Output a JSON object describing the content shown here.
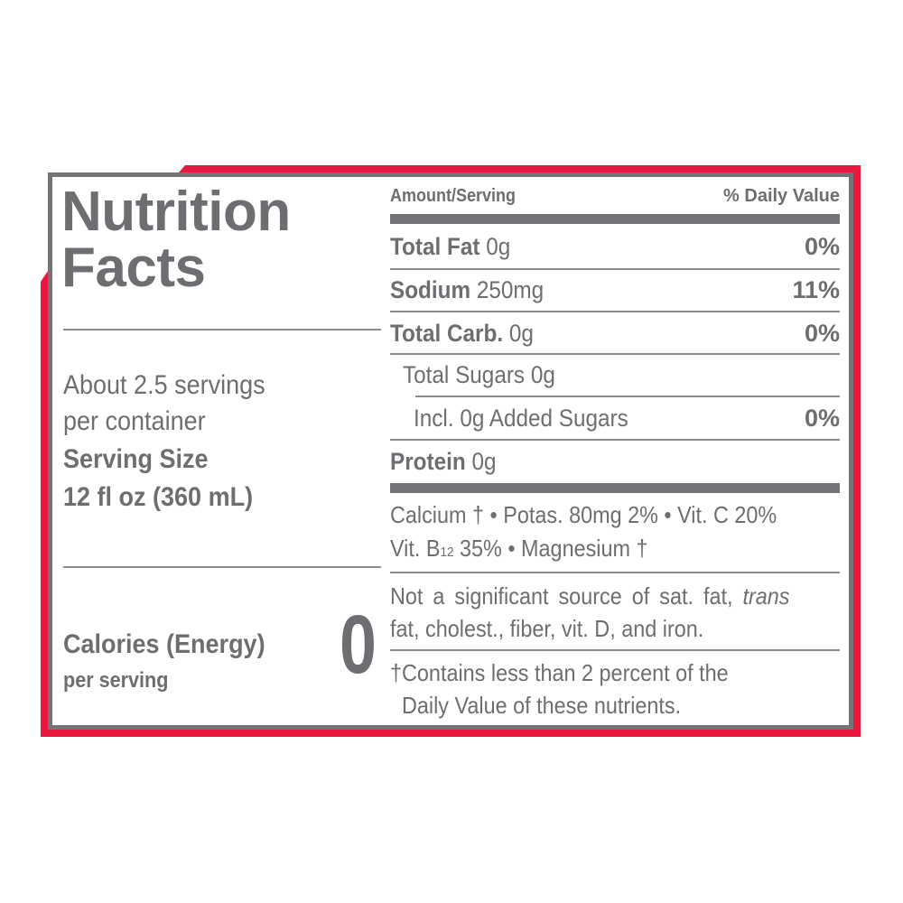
{
  "colors": {
    "frame_red": "#e8183f",
    "text_gray": "#6d6e71",
    "border_gray": "#737477"
  },
  "title": {
    "line1": "Nutrition",
    "line2": "Facts"
  },
  "servings": {
    "line1": "About 2.5 servings",
    "line2": "per container",
    "size_label": "Serving Size",
    "size_value": "12 fl oz (360 mL)"
  },
  "calories": {
    "label": "Calories (Energy)",
    "sub": "per serving",
    "value": "0"
  },
  "header": {
    "amount": "Amount/Serving",
    "dv": "% Daily Value"
  },
  "rows": [
    {
      "name": "Total Fat",
      "amount": "0g",
      "dv": "0%"
    },
    {
      "name": "Sodium",
      "amount": "250mg",
      "dv": "11%"
    },
    {
      "name": "Total Carb.",
      "amount": "0g",
      "dv": "0%"
    },
    {
      "name": "Total Sugars 0g"
    },
    {
      "name": "Incl. 0g Added Sugars",
      "dv": "0%"
    },
    {
      "name": "Protein",
      "amount": "0g"
    }
  ],
  "vitamins": {
    "line1": "Calcium † • Potas. 80mg 2% • Vit. C 20%",
    "line2_a": "Vit. B",
    "line2_sub": "12",
    "line2_b": " 35% • Magnesium †"
  },
  "not_significant": {
    "line1_a": "Not a significant source of sat. fat, ",
    "line1_italic": "trans",
    "line2": "fat, cholest., fiber, vit. D, and iron."
  },
  "footnote": {
    "line1": "†Contains less than 2 percent of the",
    "line2": "Daily Value of these nutrients."
  }
}
